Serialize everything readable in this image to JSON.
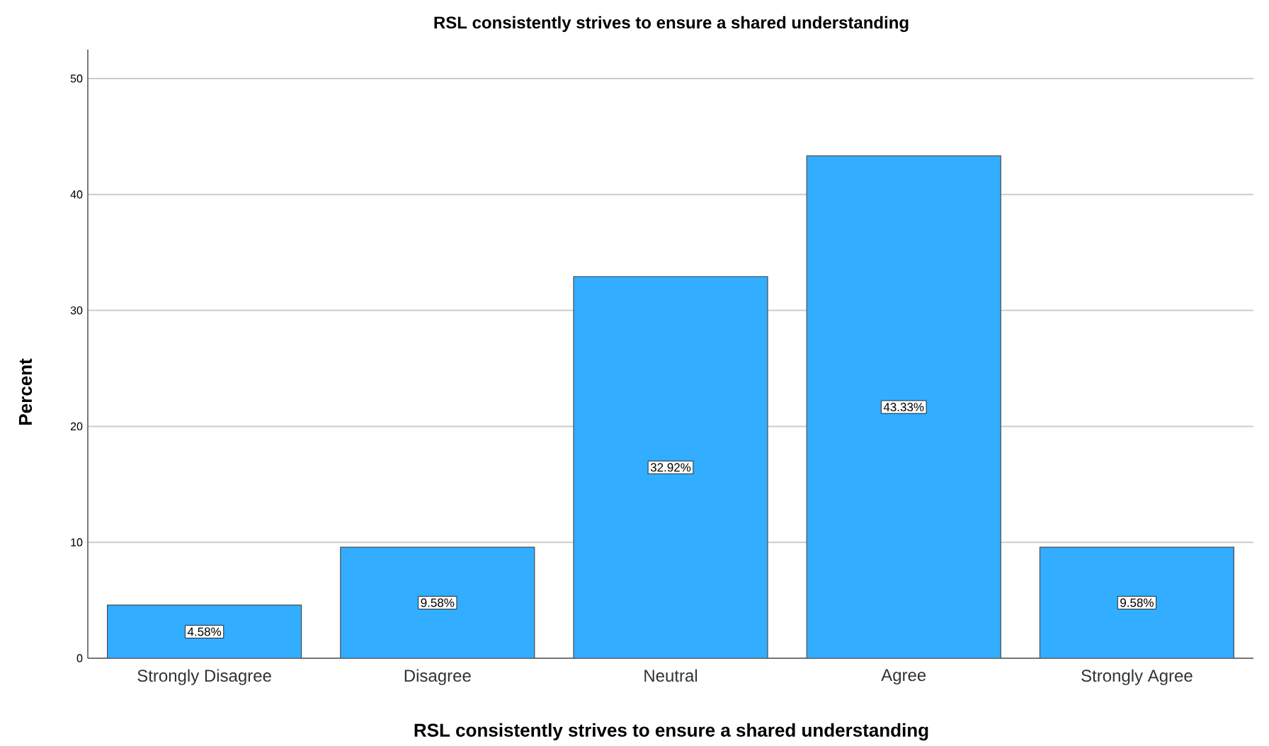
{
  "chart_data": {
    "type": "bar",
    "title": "RSL consistently strives to ensure a shared understanding",
    "xlabel": "RSL consistently strives to ensure a shared understanding",
    "ylabel": "Percent",
    "categories": [
      "Strongly Disagree",
      "Disagree",
      "Neutral",
      "Agree",
      "Strongly Agree"
    ],
    "values": [
      4.58,
      9.58,
      32.92,
      43.33,
      9.58
    ],
    "value_labels": [
      "4.58%",
      "9.58%",
      "32.92%",
      "43.33%",
      "9.58%"
    ],
    "color": "#33adff",
    "ylim": [
      0,
      52.5
    ],
    "yticks": [
      0,
      10,
      20,
      30,
      40,
      50
    ],
    "grid": "y"
  }
}
